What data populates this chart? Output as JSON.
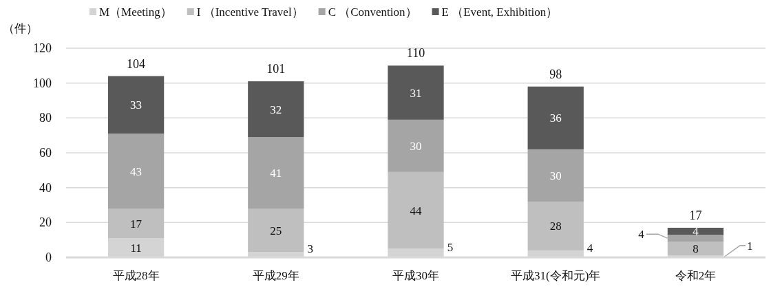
{
  "chart_data": {
    "type": "bar",
    "stacked": true,
    "ylabel": "（件）",
    "categories": [
      "平成28年",
      "平成29年",
      "平成30年",
      "平成31(令和元)年",
      "令和2年"
    ],
    "series": [
      {
        "name": "M（Meeting）",
        "color": "#d4d4d4",
        "values": [
          11,
          3,
          5,
          4,
          1
        ]
      },
      {
        "name": "I （Incentive Travel）",
        "color": "#bfbfbf",
        "values": [
          17,
          25,
          44,
          28,
          8
        ]
      },
      {
        "name": "C （Convention）",
        "color": "#a5a5a5",
        "values": [
          43,
          41,
          30,
          30,
          4
        ]
      },
      {
        "name": "E （Event, Exhibition）",
        "color": "#595959",
        "values": [
          33,
          32,
          31,
          36,
          4
        ]
      }
    ],
    "ylim": [
      0,
      120
    ],
    "yticks": [
      0,
      20,
      40,
      60,
      80,
      100,
      120
    ],
    "grid": "y",
    "legend": "top",
    "data_labels": true,
    "totals": [
      "104",
      "101",
      "110",
      "98",
      "17"
    ]
  }
}
